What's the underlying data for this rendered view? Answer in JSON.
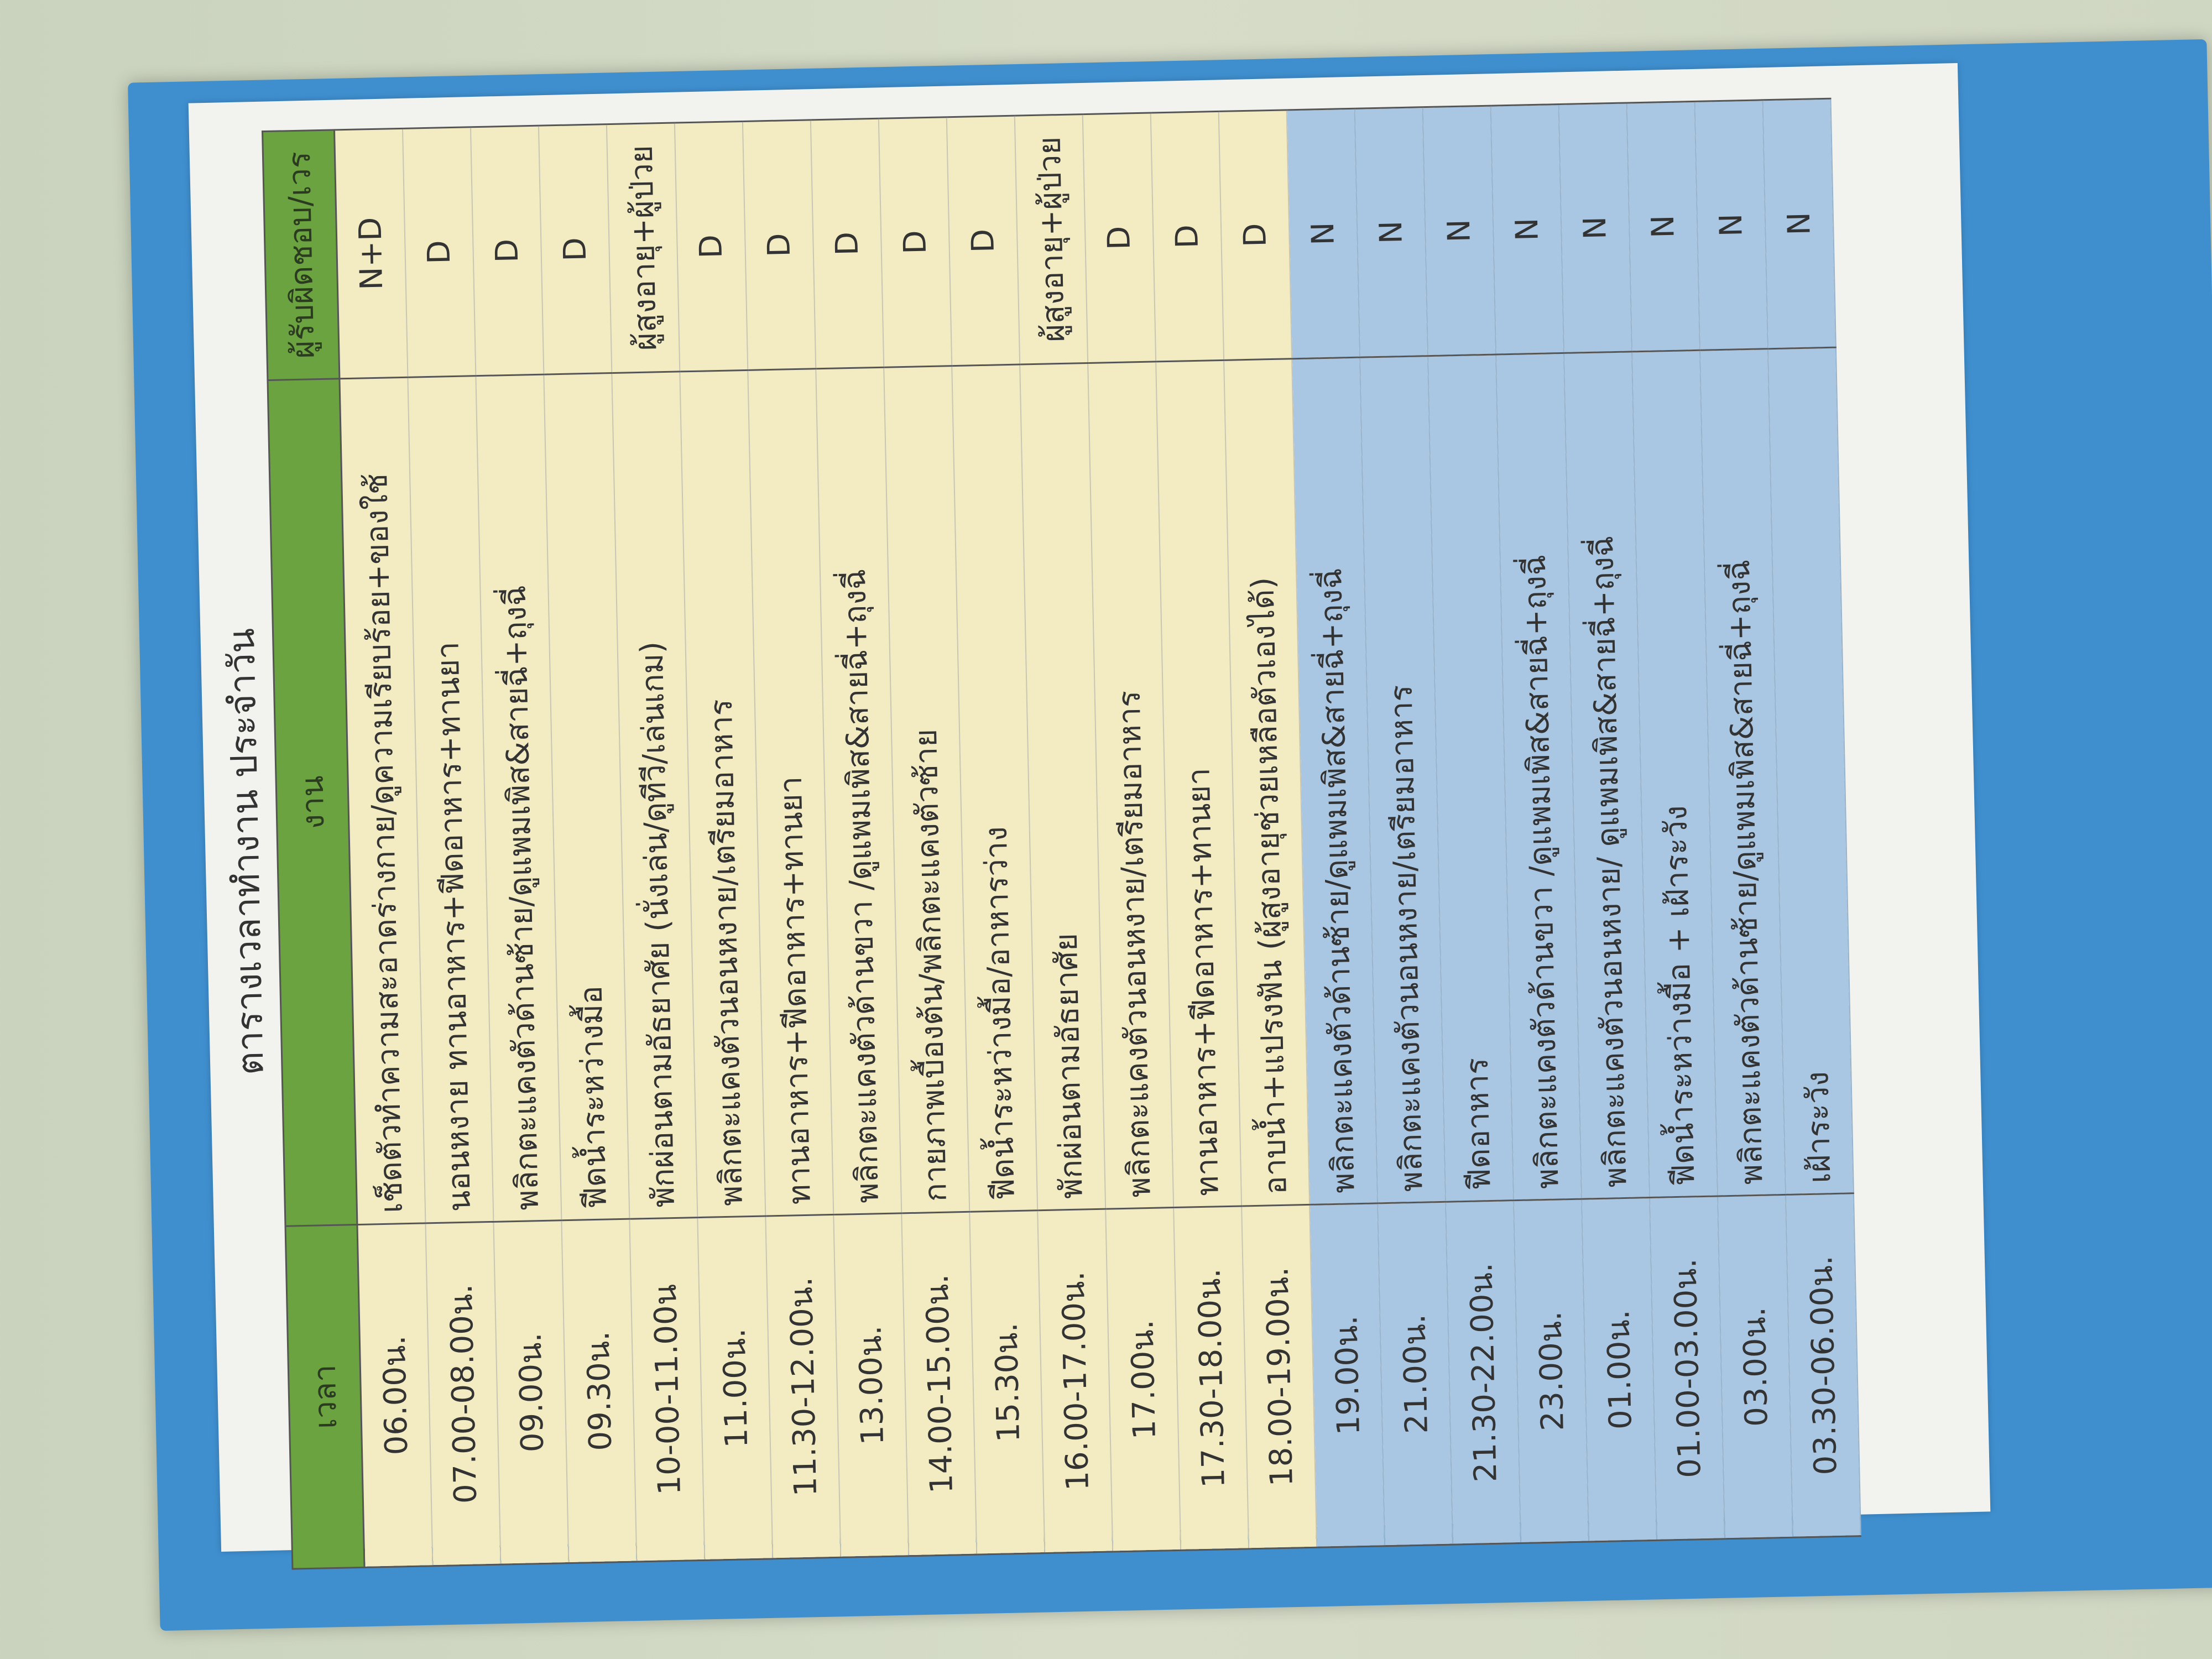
{
  "title": "ตารางเวลาทำงาน ประจำวัน",
  "headers": {
    "time": "เวลา",
    "task": "งาน",
    "responsible": "ผู้รับผิดชอบ/เวร"
  },
  "colors": {
    "header": "#6aa33f",
    "day_rows": "#f3ecc2",
    "night_rows": "#a9c7e3",
    "folder": "#3f8fcf"
  },
  "rows": [
    {
      "time": "06.00น.",
      "task": "เช็ดตัวทำความสะอาดร่างกาย/ดูความเรียบร้อย+ของใช้",
      "responsible": "N+D"
    },
    {
      "time": "07.00-08.00น.",
      "task": "นอนหงาย ทานอาหาร+ฟีดอาหาร+ทานยา",
      "responsible": "D"
    },
    {
      "time": "09.00น.",
      "task": "พลิกตะแคงตัวด้านซ้าย/ดูแพมเพิส&สายฉี่+ถุงฉี่",
      "responsible": "D"
    },
    {
      "time": "09.30น.",
      "task": "ฟีดน้ำระหว่างมื้อ",
      "responsible": "D"
    },
    {
      "time": "10-00-11.00น",
      "task": "พักผ่อนตามอัธยาศัย (นั่งเล่น/ดูทีวี/เล่นเกม)",
      "responsible": "ผู้สูงอายุ+ผู้ป่วย"
    },
    {
      "time": "11.00น.",
      "task": "พลิกตะแคงตัวนอนหงาย/เตรียมอาหาร",
      "responsible": "D"
    },
    {
      "time": "11.30-12.00น.",
      "task": "ทานอาหาร+ฟีดอาหาร+ทานยา",
      "responsible": "D"
    },
    {
      "time": "13.00น.",
      "task": "พลิกตะแคงตัวด้านขวา /ดูแพมเพิส&สายฉี่+ถุงฉี่",
      "responsible": "D"
    },
    {
      "time": "14.00-15.00น.",
      "task": "กายภาพเบื้องต้น/พลิกตะแคงตัวซ้าย",
      "responsible": "D"
    },
    {
      "time": "15.30น.",
      "task": "ฟีดน้ำระหว่างมื้อ/อาหารว่าง",
      "responsible": "D"
    },
    {
      "time": "16.00-17.00น.",
      "task": "พักผ่อนตามอัธยาศัย",
      "responsible": "ผู้สูงอายุ+ผู้ป่วย"
    },
    {
      "time": "17.00น.",
      "task": "พลิกตะแคงตัวนอนหงาย/เตรียมอาหาร",
      "responsible": "D"
    },
    {
      "time": "17.30-18.00น.",
      "task": "ทานอาหาร+ฟีดอาหาร+ทานยา",
      "responsible": "D"
    },
    {
      "time": "18.00-19.00น.",
      "task": "อาบน้ำ+แปรงฟัน (ผู้สูงอายุช่วยเหลือตัวเองได้)",
      "responsible": "D"
    },
    {
      "time": "19.00น.",
      "task": "พลิกตะแคงตัวด้านซ้าย/ดูแพมเพิส&สายฉี่+ถุงฉี่",
      "responsible": "N"
    },
    {
      "time": "21.00น.",
      "task": "พลิกตะแคงตัวนอนหงาย/เตรียมอาหาร",
      "responsible": "N"
    },
    {
      "time": "21.30-22.00น.",
      "task": "ฟีดอาหาร",
      "responsible": "N"
    },
    {
      "time": "23.00น.",
      "task": "พลิกตะแคงตัวด้านขวา /ดูแพมเพิส&สายฉี่+ถุงฉี่",
      "responsible": "N"
    },
    {
      "time": "01.00น.",
      "task": "พลิกตะแคงตัวนอนหงาย/ ดูแพมเพิส&สายฉี่+ถุงฉี่",
      "responsible": "N"
    },
    {
      "time": "01.00-03.00น.",
      "task": "ฟีดน้ำระหว่างมื้อ + เฝ้าระวัง",
      "responsible": "N"
    },
    {
      "time": "03.00น.",
      "task": "พลิกตะแคงตัวด้านซ้าย/ดูแพมเพิส&สายฉี่+ถุงฉี่",
      "responsible": "N"
    },
    {
      "time": "03.30-06.00น.",
      "task": "เฝ้าระวัง",
      "responsible": "N"
    }
  ]
}
